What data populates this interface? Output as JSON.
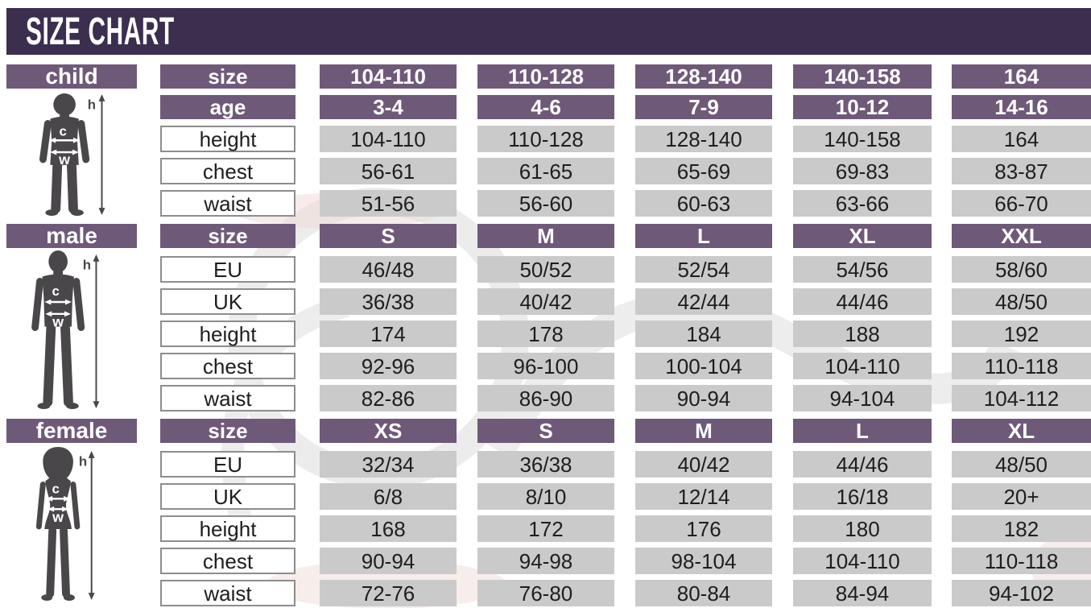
{
  "title": "SIZE CHART",
  "colors": {
    "bar_bg": "#3b2e4f",
    "header_purple": "#6f5979",
    "cell_gray": "#cacaca",
    "cell_border": "#8d8d8d",
    "text_dark": "#1e1e1e",
    "figure_gray": "#4a474b",
    "watermark_gray": "#ececec",
    "watermark_pink": "#f0dcd8"
  },
  "figure_annotations": {
    "height_label": "h",
    "chest_label": "c",
    "waist_label": "w"
  },
  "sections": [
    {
      "id": "child",
      "label": "child",
      "header_rows": [
        {
          "label": "size",
          "cells": [
            "104-110",
            "110-128",
            "128-140",
            "140-158",
            "164"
          ]
        },
        {
          "label": "age",
          "cells": [
            "3-4",
            "4-6",
            "7-9",
            "10-12",
            "14-16"
          ]
        }
      ],
      "data_rows": [
        {
          "label": "height",
          "cells": [
            "104-110",
            "110-128",
            "128-140",
            "140-158",
            "164"
          ]
        },
        {
          "label": "chest",
          "cells": [
            "56-61",
            "61-65",
            "65-69",
            "69-83",
            "83-87"
          ]
        },
        {
          "label": "waist",
          "cells": [
            "51-56",
            "56-60",
            "60-63",
            "63-66",
            "66-70"
          ]
        }
      ]
    },
    {
      "id": "male",
      "label": "male",
      "header_rows": [
        {
          "label": "size",
          "cells": [
            "S",
            "M",
            "L",
            "XL",
            "XXL"
          ]
        }
      ],
      "data_rows": [
        {
          "label": "EU",
          "cells": [
            "46/48",
            "50/52",
            "52/54",
            "54/56",
            "58/60"
          ]
        },
        {
          "label": "UK",
          "cells": [
            "36/38",
            "40/42",
            "42/44",
            "44/46",
            "48/50"
          ]
        },
        {
          "label": "height",
          "cells": [
            "174",
            "178",
            "184",
            "188",
            "192"
          ]
        },
        {
          "label": "chest",
          "cells": [
            "92-96",
            "96-100",
            "100-104",
            "104-110",
            "110-118"
          ]
        },
        {
          "label": "waist",
          "cells": [
            "82-86",
            "86-90",
            "90-94",
            "94-104",
            "104-112"
          ]
        }
      ]
    },
    {
      "id": "female",
      "label": "female",
      "header_rows": [
        {
          "label": "size",
          "cells": [
            "XS",
            "S",
            "M",
            "L",
            "XL"
          ]
        }
      ],
      "data_rows": [
        {
          "label": "EU",
          "cells": [
            "32/34",
            "36/38",
            "40/42",
            "44/46",
            "48/50"
          ]
        },
        {
          "label": "UK",
          "cells": [
            "6/8",
            "8/10",
            "12/14",
            "16/18",
            "20+"
          ]
        },
        {
          "label": "height",
          "cells": [
            "168",
            "172",
            "176",
            "180",
            "182"
          ]
        },
        {
          "label": "chest",
          "cells": [
            "90-94",
            "94-98",
            "98-104",
            "104-110",
            "110-118"
          ]
        },
        {
          "label": "waist",
          "cells": [
            "72-76",
            "76-80",
            "80-84",
            "84-94",
            "94-102"
          ]
        }
      ]
    }
  ],
  "chart_data": [
    {
      "type": "table",
      "group": "child",
      "header_rows": [
        {
          "label": "size",
          "values": [
            "104-110",
            "110-128",
            "128-140",
            "140-158",
            "164"
          ]
        },
        {
          "label": "age",
          "values": [
            "3-4",
            "4-6",
            "7-9",
            "10-12",
            "14-16"
          ]
        }
      ],
      "rows": [
        {
          "label": "height",
          "values": [
            "104-110",
            "110-128",
            "128-140",
            "140-158",
            "164"
          ]
        },
        {
          "label": "chest",
          "values": [
            "56-61",
            "61-65",
            "65-69",
            "69-83",
            "83-87"
          ]
        },
        {
          "label": "waist",
          "values": [
            "51-56",
            "56-60",
            "60-63",
            "63-66",
            "66-70"
          ]
        }
      ]
    },
    {
      "type": "table",
      "group": "male",
      "header_rows": [
        {
          "label": "size",
          "values": [
            "S",
            "M",
            "L",
            "XL",
            "XXL"
          ]
        }
      ],
      "rows": [
        {
          "label": "EU",
          "values": [
            "46/48",
            "50/52",
            "52/54",
            "54/56",
            "58/60"
          ]
        },
        {
          "label": "UK",
          "values": [
            "36/38",
            "40/42",
            "42/44",
            "44/46",
            "48/50"
          ]
        },
        {
          "label": "height",
          "values": [
            "174",
            "178",
            "184",
            "188",
            "192"
          ]
        },
        {
          "label": "chest",
          "values": [
            "92-96",
            "96-100",
            "100-104",
            "104-110",
            "110-118"
          ]
        },
        {
          "label": "waist",
          "values": [
            "82-86",
            "86-90",
            "90-94",
            "94-104",
            "104-112"
          ]
        }
      ]
    },
    {
      "type": "table",
      "group": "female",
      "header_rows": [
        {
          "label": "size",
          "values": [
            "XS",
            "S",
            "M",
            "L",
            "XL"
          ]
        }
      ],
      "rows": [
        {
          "label": "EU",
          "values": [
            "32/34",
            "36/38",
            "40/42",
            "44/46",
            "48/50"
          ]
        },
        {
          "label": "UK",
          "values": [
            "6/8",
            "8/10",
            "12/14",
            "16/18",
            "20+"
          ]
        },
        {
          "label": "height",
          "values": [
            "168",
            "172",
            "176",
            "180",
            "182"
          ]
        },
        {
          "label": "chest",
          "values": [
            "90-94",
            "94-98",
            "98-104",
            "104-110",
            "110-118"
          ]
        },
        {
          "label": "waist",
          "values": [
            "72-76",
            "76-80",
            "80-84",
            "84-94",
            "94-102"
          ]
        }
      ]
    }
  ]
}
